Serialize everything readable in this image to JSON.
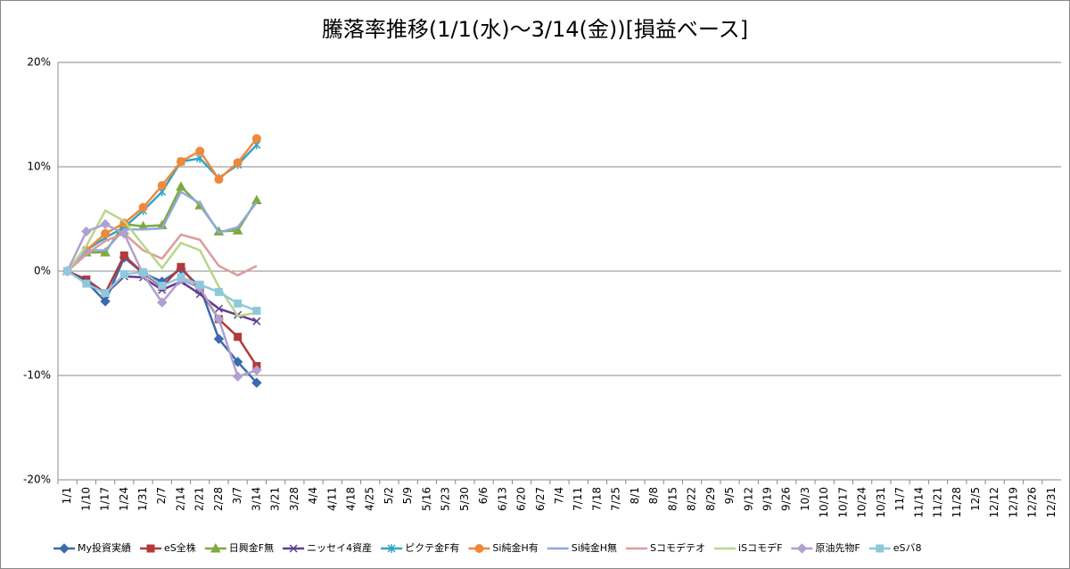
{
  "chart_data": {
    "type": "line",
    "title": "騰落率推移(1/1(水)～3/14(金))[損益ベース]",
    "categories": [
      "1/1",
      "1/10",
      "1/17",
      "1/24",
      "1/31",
      "2/7",
      "2/14",
      "2/21",
      "2/28",
      "3/7",
      "3/14",
      "3/21",
      "3/28",
      "4/4",
      "4/11",
      "4/18",
      "4/25",
      "5/2",
      "5/9",
      "5/16",
      "5/23",
      "5/30",
      "6/6",
      "6/13",
      "6/20",
      "6/27",
      "7/4",
      "7/11",
      "7/18",
      "7/25",
      "8/1",
      "8/8",
      "8/15",
      "8/22",
      "8/29",
      "9/5",
      "9/12",
      "9/19",
      "9/26",
      "10/3",
      "10/10",
      "10/17",
      "10/24",
      "10/31",
      "11/7",
      "11/14",
      "11/21",
      "11/28",
      "12/5",
      "12/12",
      "12/19",
      "12/26",
      "12/31"
    ],
    "ylim": [
      -20,
      20
    ],
    "yticks": [
      {
        "value": -20,
        "label": "-20%"
      },
      {
        "value": -10,
        "label": "-10%"
      },
      {
        "value": 0,
        "label": "0%"
      },
      {
        "value": 10,
        "label": "10%"
      },
      {
        "value": 20,
        "label": "20%"
      }
    ],
    "grid": true,
    "legend": "bottom",
    "series": [
      {
        "name": "My投資実績",
        "color": "#3a6ab0",
        "marker": "diamond",
        "values": [
          0,
          -1,
          -2.9,
          1.3,
          -0.2,
          -1,
          0.2,
          -1.5,
          -6.5,
          -8.7,
          -10.7,
          null,
          null,
          null,
          null,
          null,
          null,
          null,
          null,
          null,
          null,
          null,
          null,
          null,
          null,
          null,
          null,
          null,
          null,
          null,
          null,
          null,
          null,
          null,
          null,
          null,
          null,
          null,
          null,
          null,
          null,
          null,
          null,
          null,
          null,
          null,
          null,
          null,
          null,
          null,
          null,
          null,
          null
        ]
      },
      {
        "name": "eS全株",
        "color": "#b33a3a",
        "marker": "square",
        "values": [
          0,
          -0.8,
          -2.1,
          1.5,
          -0.2,
          -1.5,
          0.4,
          -1.8,
          -4.6,
          -6.3,
          -9.1,
          null,
          null,
          null,
          null,
          null,
          null,
          null,
          null,
          null,
          null,
          null,
          null,
          null,
          null,
          null,
          null,
          null,
          null,
          null,
          null,
          null,
          null,
          null,
          null,
          null,
          null,
          null,
          null,
          null,
          null,
          null,
          null,
          null,
          null,
          null,
          null,
          null,
          null,
          null,
          null,
          null,
          null
        ]
      },
      {
        "name": "日興金F無",
        "color": "#7faa3f",
        "marker": "triangle",
        "values": [
          0,
          1.8,
          1.8,
          4.5,
          4.3,
          4.4,
          8.1,
          6.3,
          3.8,
          3.9,
          6.8,
          null,
          null,
          null,
          null,
          null,
          null,
          null,
          null,
          null,
          null,
          null,
          null,
          null,
          null,
          null,
          null,
          null,
          null,
          null,
          null,
          null,
          null,
          null,
          null,
          null,
          null,
          null,
          null,
          null,
          null,
          null,
          null,
          null,
          null,
          null,
          null,
          null,
          null,
          null,
          null,
          null,
          null
        ]
      },
      {
        "name": "ニッセイ4資産",
        "color": "#5f3f8f",
        "marker": "x",
        "values": [
          0,
          -1,
          -2.2,
          -0.5,
          -0.6,
          -1.8,
          -1,
          -2.2,
          -3.6,
          -4.2,
          -4.8,
          null,
          null,
          null,
          null,
          null,
          null,
          null,
          null,
          null,
          null,
          null,
          null,
          null,
          null,
          null,
          null,
          null,
          null,
          null,
          null,
          null,
          null,
          null,
          null,
          null,
          null,
          null,
          null,
          null,
          null,
          null,
          null,
          null,
          null,
          null,
          null,
          null,
          null,
          null,
          null,
          null,
          null
        ]
      },
      {
        "name": "ピクテ金F有",
        "color": "#2fa6c6",
        "marker": "star",
        "values": [
          0,
          2,
          3.2,
          4.2,
          5.8,
          7.6,
          10.5,
          10.8,
          8.9,
          10.2,
          12.1,
          null,
          null,
          null,
          null,
          null,
          null,
          null,
          null,
          null,
          null,
          null,
          null,
          null,
          null,
          null,
          null,
          null,
          null,
          null,
          null,
          null,
          null,
          null,
          null,
          null,
          null,
          null,
          null,
          null,
          null,
          null,
          null,
          null,
          null,
          null,
          null,
          null,
          null,
          null,
          null,
          null,
          null
        ]
      },
      {
        "name": "Si純金H有",
        "color": "#f0883a",
        "marker": "circle",
        "values": [
          0,
          2,
          3.6,
          4.6,
          6.1,
          8.2,
          10.5,
          11.5,
          8.8,
          10.4,
          12.7,
          null,
          null,
          null,
          null,
          null,
          null,
          null,
          null,
          null,
          null,
          null,
          null,
          null,
          null,
          null,
          null,
          null,
          null,
          null,
          null,
          null,
          null,
          null,
          null,
          null,
          null,
          null,
          null,
          null,
          null,
          null,
          null,
          null,
          null,
          null,
          null,
          null,
          null,
          null,
          null,
          null,
          null
        ]
      },
      {
        "name": "Si純金H無",
        "color": "#8fa8e0",
        "marker": "none",
        "values": [
          0,
          2,
          2,
          4,
          4,
          4.1,
          7.6,
          6.5,
          3.7,
          4.2,
          6.6,
          null,
          null,
          null,
          null,
          null,
          null,
          null,
          null,
          null,
          null,
          null,
          null,
          null,
          null,
          null,
          null,
          null,
          null,
          null,
          null,
          null,
          null,
          null,
          null,
          null,
          null,
          null,
          null,
          null,
          null,
          null,
          null,
          null,
          null,
          null,
          null,
          null,
          null,
          null,
          null,
          null,
          null
        ]
      },
      {
        "name": "Sコモデテオ",
        "color": "#e09a9a",
        "marker": "none",
        "values": [
          0,
          1.6,
          2.9,
          3.6,
          2,
          1.2,
          3.5,
          3,
          0.5,
          -0.4,
          0.5,
          null,
          null,
          null,
          null,
          null,
          null,
          null,
          null,
          null,
          null,
          null,
          null,
          null,
          null,
          null,
          null,
          null,
          null,
          null,
          null,
          null,
          null,
          null,
          null,
          null,
          null,
          null,
          null,
          null,
          null,
          null,
          null,
          null,
          null,
          null,
          null,
          null,
          null,
          null,
          null,
          null,
          null
        ]
      },
      {
        "name": "iSコモデF",
        "color": "#b8d68a",
        "marker": "none",
        "values": [
          0,
          2.4,
          5.8,
          4.8,
          2.5,
          0.3,
          2.7,
          2,
          -1.5,
          -4.3,
          -4,
          null,
          null,
          null,
          null,
          null,
          null,
          null,
          null,
          null,
          null,
          null,
          null,
          null,
          null,
          null,
          null,
          null,
          null,
          null,
          null,
          null,
          null,
          null,
          null,
          null,
          null,
          null,
          null,
          null,
          null,
          null,
          null,
          null,
          null,
          null,
          null,
          null,
          null,
          null,
          null,
          null,
          null
        ]
      },
      {
        "name": "原油先物F",
        "color": "#b0a0d0",
        "marker": "diamond",
        "values": [
          0,
          3.8,
          4.5,
          3.6,
          -0.3,
          -3,
          -0.8,
          -1.6,
          -4.6,
          -10.1,
          -9.5,
          null,
          null,
          null,
          null,
          null,
          null,
          null,
          null,
          null,
          null,
          null,
          null,
          null,
          null,
          null,
          null,
          null,
          null,
          null,
          null,
          null,
          null,
          null,
          null,
          null,
          null,
          null,
          null,
          null,
          null,
          null,
          null,
          null,
          null,
          null,
          null,
          null,
          null,
          null,
          null,
          null,
          null
        ]
      },
      {
        "name": "eSバ8",
        "color": "#8fc8dc",
        "marker": "square",
        "values": [
          0,
          -1.2,
          -2.1,
          -0.3,
          -0.1,
          -1.4,
          -0.6,
          -1.3,
          -2,
          -3.1,
          -3.8,
          null,
          null,
          null,
          null,
          null,
          null,
          null,
          null,
          null,
          null,
          null,
          null,
          null,
          null,
          null,
          null,
          null,
          null,
          null,
          null,
          null,
          null,
          null,
          null,
          null,
          null,
          null,
          null,
          null,
          null,
          null,
          null,
          null,
          null,
          null,
          null,
          null,
          null,
          null,
          null,
          null,
          null
        ]
      }
    ]
  }
}
